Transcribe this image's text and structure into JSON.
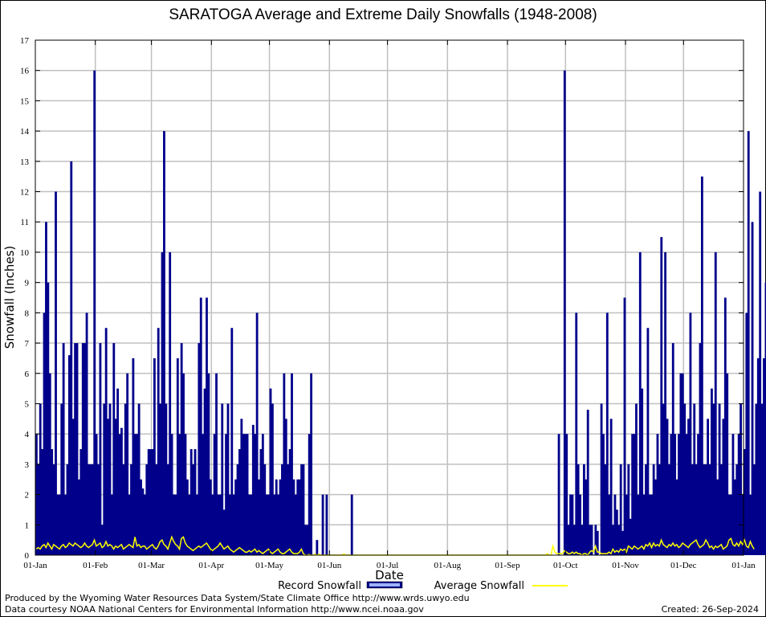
{
  "chart_data": {
    "type": "bar",
    "title": "SARATOGA Average and Extreme Daily Snowfalls (1948-2008)",
    "xlabel": "Date",
    "ylabel": "Snowfall (Inches)",
    "ylim": [
      0,
      17
    ],
    "yticks": [
      0,
      1,
      2,
      3,
      4,
      5,
      6,
      7,
      8,
      9,
      10,
      11,
      12,
      13,
      14,
      15,
      16,
      17
    ],
    "xticks": [
      "01-Jan",
      "01-Feb",
      "01-Mar",
      "01-Apr",
      "01-May",
      "01-Jun",
      "01-Jul",
      "01-Aug",
      "01-Sep",
      "01-Oct",
      "01-Nov",
      "01-Dec",
      "01-Jan"
    ],
    "xtick_days": [
      0,
      31,
      60,
      91,
      121,
      152,
      182,
      213,
      244,
      274,
      305,
      335,
      366
    ],
    "grid": true,
    "legend": {
      "placement": "bottom",
      "items": [
        {
          "name": "Record Snowfall",
          "color": "#00008b",
          "kind": "bar"
        },
        {
          "name": "Average Snowfall",
          "color": "#ffff00",
          "kind": "line"
        }
      ]
    },
    "series": [
      {
        "name": "Record Snowfall",
        "color": "#00008b",
        "values": [
          4,
          3,
          5,
          3.5,
          8,
          11,
          9,
          6,
          3.5,
          3,
          12,
          2,
          2,
          5,
          7,
          2,
          3,
          6.6,
          13,
          4.5,
          7,
          7,
          2.5,
          3.5,
          7,
          7,
          8,
          3,
          3,
          3,
          16,
          4,
          3,
          7,
          1,
          5,
          7.5,
          4.5,
          5,
          2,
          7,
          4.5,
          5.5,
          4,
          4.2,
          3,
          5,
          6,
          2,
          3,
          6.5,
          4,
          4,
          5,
          2.5,
          2.2,
          2,
          3,
          3.5,
          3.5,
          3.5,
          6.5,
          3,
          7.5,
          5,
          10,
          14,
          5,
          3,
          10,
          4,
          2,
          2,
          6.5,
          4,
          7,
          6,
          4,
          2.5,
          2,
          3.5,
          3,
          3.5,
          2,
          7,
          8.5,
          4,
          5.5,
          8.5,
          6,
          2.5,
          2,
          4,
          6,
          2,
          2,
          5,
          1.5,
          4,
          5,
          2,
          7.5,
          2,
          2.5,
          3,
          3.5,
          4.5,
          4,
          4,
          4,
          2,
          2,
          4.3,
          4,
          8,
          2.5,
          3.5,
          4,
          3,
          2,
          2,
          5.5,
          5,
          2,
          2.5,
          2,
          2.5,
          3,
          6,
          4.5,
          3,
          3.5,
          6,
          2.5,
          2,
          2.5,
          2.5,
          3,
          3,
          1,
          1,
          4,
          6,
          0,
          0,
          0.5,
          0,
          0,
          2,
          0,
          2,
          0,
          0,
          0,
          0,
          0,
          0,
          0,
          0,
          0,
          0,
          0,
          0,
          2,
          0,
          0,
          0,
          0,
          0,
          0,
          0,
          0,
          0,
          0,
          0,
          0,
          0,
          0,
          0,
          0,
          0,
          0,
          0,
          0,
          0,
          0,
          0,
          0,
          0,
          0,
          0,
          0,
          0,
          0,
          0,
          0,
          0,
          0,
          0,
          0,
          0,
          0,
          0,
          0,
          0,
          0,
          0,
          0,
          0,
          0,
          0,
          0,
          0,
          0,
          0,
          0,
          0,
          0,
          0,
          0,
          0,
          0,
          0,
          0,
          0,
          0,
          0,
          0,
          0,
          0,
          0,
          0,
          0,
          0,
          0,
          0,
          0,
          0,
          0,
          0,
          0,
          0,
          0,
          0,
          0,
          0,
          0,
          0,
          0,
          0,
          0,
          0,
          0,
          0,
          0,
          0,
          0,
          0,
          0,
          0,
          0,
          0,
          0,
          0,
          0,
          0,
          0,
          0,
          0,
          0,
          4,
          0,
          0,
          16,
          4,
          1,
          2,
          2,
          1,
          8,
          3,
          2,
          1,
          3,
          2.5,
          4.8,
          1,
          1,
          0,
          1,
          0.8,
          0,
          5,
          4,
          3,
          8,
          2,
          4.5,
          1,
          2,
          1.5,
          1,
          3,
          0.8,
          8.5,
          2,
          3,
          1.2,
          4,
          4,
          5,
          2,
          10,
          5.5,
          2,
          3,
          7.5,
          2,
          2,
          3,
          2.5,
          4,
          3,
          10.5,
          5,
          10,
          4.5,
          3,
          4,
          7,
          4,
          2.5,
          4,
          6,
          6,
          5,
          4,
          4.5,
          8,
          3,
          5,
          3,
          4,
          7,
          12.5,
          3,
          3,
          4.5,
          3,
          5.5,
          5,
          10,
          2.5,
          5,
          3,
          4.5,
          8.5,
          6,
          2,
          2,
          4,
          2.5,
          3,
          4,
          5,
          2,
          3.5,
          8,
          14,
          2,
          11,
          3,
          5,
          6.5,
          12,
          5,
          6.5,
          9,
          4,
          7,
          3
        ]
      },
      {
        "name": "Average Snowfall",
        "color": "#ffff00",
        "values": [
          0.2,
          0.25,
          0.2,
          0.3,
          0.35,
          0.25,
          0.4,
          0.3,
          0.2,
          0.35,
          0.3,
          0.25,
          0.2,
          0.3,
          0.35,
          0.25,
          0.3,
          0.4,
          0.35,
          0.3,
          0.4,
          0.35,
          0.3,
          0.25,
          0.3,
          0.4,
          0.3,
          0.25,
          0.3,
          0.35,
          0.5,
          0.3,
          0.35,
          0.4,
          0.25,
          0.3,
          0.45,
          0.3,
          0.35,
          0.3,
          0.2,
          0.3,
          0.25,
          0.3,
          0.35,
          0.2,
          0.25,
          0.3,
          0.35,
          0.3,
          0.25,
          0.6,
          0.3,
          0.35,
          0.25,
          0.3,
          0.3,
          0.2,
          0.25,
          0.3,
          0.35,
          0.25,
          0.2,
          0.3,
          0.45,
          0.5,
          0.35,
          0.3,
          0.2,
          0.4,
          0.6,
          0.45,
          0.35,
          0.3,
          0.2,
          0.55,
          0.6,
          0.4,
          0.3,
          0.25,
          0.2,
          0.15,
          0.2,
          0.25,
          0.3,
          0.25,
          0.3,
          0.35,
          0.4,
          0.3,
          0.2,
          0.15,
          0.2,
          0.25,
          0.3,
          0.4,
          0.3,
          0.2,
          0.25,
          0.3,
          0.2,
          0.15,
          0.1,
          0.15,
          0.2,
          0.25,
          0.2,
          0.15,
          0.1,
          0.1,
          0.15,
          0.1,
          0.15,
          0.2,
          0.1,
          0.15,
          0.1,
          0.05,
          0.1,
          0.15,
          0.2,
          0.1,
          0.05,
          0.1,
          0.15,
          0.2,
          0.1,
          0.05,
          0.05,
          0.1,
          0.15,
          0.2,
          0.1,
          0.05,
          0.05,
          0.05,
          0.1,
          0.2,
          0.05,
          0,
          0,
          0.02,
          0,
          0,
          0.03,
          0,
          0.03,
          0,
          0,
          0,
          0,
          0,
          0,
          0,
          0,
          0,
          0,
          0,
          0,
          0.04,
          0,
          0,
          0,
          0,
          0,
          0,
          0,
          0,
          0,
          0,
          0,
          0,
          0,
          0,
          0,
          0,
          0,
          0,
          0,
          0,
          0,
          0,
          0,
          0,
          0,
          0,
          0,
          0,
          0,
          0,
          0,
          0,
          0,
          0,
          0,
          0,
          0,
          0,
          0,
          0,
          0,
          0,
          0,
          0,
          0,
          0,
          0,
          0,
          0,
          0,
          0,
          0,
          0,
          0,
          0,
          0,
          0,
          0,
          0,
          0,
          0,
          0,
          0,
          0,
          0,
          0,
          0,
          0,
          0,
          0,
          0,
          0,
          0,
          0,
          0,
          0,
          0,
          0,
          0,
          0,
          0,
          0,
          0,
          0,
          0,
          0,
          0,
          0,
          0,
          0,
          0,
          0,
          0,
          0,
          0,
          0,
          0,
          0,
          0,
          0,
          0,
          0,
          0,
          0,
          0.05,
          0,
          0,
          0.3,
          0.1,
          0.05,
          0.05,
          0.05,
          0.05,
          0.15,
          0.1,
          0.05,
          0.05,
          0.1,
          0.05,
          0.1,
          0.05,
          0.05,
          0,
          0.05,
          0.05,
          0,
          0.1,
          0.15,
          0.1,
          0.3,
          0.1,
          0.1,
          0.05,
          0.05,
          0.05,
          0.05,
          0.1,
          0.05,
          0.2,
          0.1,
          0.15,
          0.1,
          0.2,
          0.15,
          0.2,
          0.1,
          0.3,
          0.25,
          0.2,
          0.3,
          0.25,
          0.2,
          0.25,
          0.3,
          0.2,
          0.35,
          0.3,
          0.4,
          0.25,
          0.4,
          0.3,
          0.35,
          0.3,
          0.5,
          0.35,
          0.3,
          0.25,
          0.35,
          0.3,
          0.4,
          0.3,
          0.35,
          0.25,
          0.3,
          0.4,
          0.35,
          0.3,
          0.25,
          0.35,
          0.4,
          0.45,
          0.5,
          0.35,
          0.25,
          0.3,
          0.35,
          0.5,
          0.4,
          0.25,
          0.3,
          0.2,
          0.3,
          0.25,
          0.3,
          0.35,
          0.2,
          0.25,
          0.3,
          0.5,
          0.55,
          0.35,
          0.3,
          0.4,
          0.3,
          0.45,
          0.35,
          0.5,
          0.3,
          0.25,
          0.45,
          0.3,
          0.2
        ]
      }
    ]
  },
  "footer": {
    "produced_by": "Produced by the Wyoming Water Resources Data System/State Climate Office http://www.wrds.uwyo.edu",
    "data_courtesy": "Data courtesy NOAA National Centers for Environmental Information http://www.ncei.noaa.gov",
    "created": "Created: 26-Sep-2024"
  }
}
